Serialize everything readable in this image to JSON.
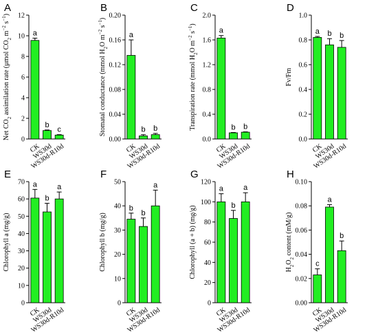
{
  "colors": {
    "bar": "#22ee22",
    "bar_stroke": "#000000",
    "axis": "#000000"
  },
  "chart_data": [
    {
      "panel": "A",
      "type": "bar",
      "categories": [
        "CK",
        "WS30d",
        "WS30d-R10d"
      ],
      "values": [
        9.55,
        0.82,
        0.38
      ],
      "errors": [
        0.22,
        0.05,
        0.04
      ],
      "letters": [
        "a",
        "b",
        "c"
      ],
      "ylabel_html": "Net CO<tspan baseline-shift='sub' font-size='7'>2</tspan> assimilation rate (μmol CO<tspan baseline-shift='sub' font-size='7'>2</tspan> m<tspan baseline-shift='super' font-size='7'>−2</tspan> s<tspan baseline-shift='super' font-size='7'>−1</tspan>)",
      "ylim": [
        0,
        12
      ],
      "yticks": [
        "0",
        "2",
        "4",
        "6",
        "8",
        "10",
        "12"
      ],
      "ytickvals": [
        0,
        2,
        4,
        6,
        8,
        10,
        12
      ]
    },
    {
      "panel": "B",
      "type": "bar",
      "categories": [
        "CK",
        "WS30d",
        "WS30d-R10d"
      ],
      "values": [
        0.135,
        0.005,
        0.007
      ],
      "errors": [
        0.025,
        0.002,
        0.002
      ],
      "letters": [
        "a",
        "b",
        "b"
      ],
      "ylabel_html": "Stomatal conductance (mmol H<tspan baseline-shift='sub' font-size='7'>2</tspan>O m<tspan baseline-shift='super' font-size='7'>−2</tspan> s<tspan baseline-shift='super' font-size='7'>−1</tspan>)",
      "ylim": [
        0,
        0.2
      ],
      "yticks": [
        "0.00",
        "0.04",
        "0.08",
        "0.12",
        "0.16",
        "0.20"
      ],
      "ytickvals": [
        0,
        0.04,
        0.08,
        0.12,
        0.16,
        0.2
      ]
    },
    {
      "panel": "C",
      "type": "bar",
      "categories": [
        "CK",
        "WS30d",
        "WS30d-R10d"
      ],
      "values": [
        1.63,
        0.1,
        0.11
      ],
      "errors": [
        0.04,
        0.005,
        0.005
      ],
      "letters": [
        "a",
        "b",
        "b"
      ],
      "ylabel_html": "Transpiration rate (mmol H<tspan baseline-shift='sub' font-size='7'>2</tspan>O m<tspan baseline-shift='super' font-size='7'>−2</tspan> s<tspan baseline-shift='super' font-size='7'>−1</tspan>)",
      "ylim": [
        0,
        2.0
      ],
      "yticks": [
        "0.0",
        "0.4",
        "0.8",
        "1.2",
        "1.6",
        "2.0"
      ],
      "ytickvals": [
        0,
        0.4,
        0.8,
        1.2,
        1.6,
        2.0
      ]
    },
    {
      "panel": "D",
      "type": "bar",
      "categories": [
        "CK",
        "WS30d",
        "WS30d-R10d"
      ],
      "values": [
        0.82,
        0.76,
        0.74
      ],
      "errors": [
        0.008,
        0.05,
        0.055
      ],
      "letters": [
        "a",
        "b",
        "b"
      ],
      "ylabel_html": "Fv/Fm",
      "ylim": [
        0,
        1.0
      ],
      "yticks": [
        "0.0",
        "0.2",
        "0.4",
        "0.6",
        "0.8",
        "1.0"
      ],
      "ytickvals": [
        0,
        0.2,
        0.4,
        0.6,
        0.8,
        1.0
      ]
    },
    {
      "panel": "E",
      "type": "bar",
      "categories": [
        "CK",
        "WS30d",
        "WS30d-R10d"
      ],
      "values": [
        60.5,
        52.5,
        60
      ],
      "errors": [
        5,
        5,
        4
      ],
      "letters": [
        "a",
        "b",
        "a"
      ],
      "ylabel_html": "Chlorophyll a (mg/g)",
      "ylim": [
        0,
        70
      ],
      "yticks": [
        "0",
        "10",
        "20",
        "30",
        "40",
        "50",
        "60",
        "70"
      ],
      "ytickvals": [
        0,
        10,
        20,
        30,
        40,
        50,
        60,
        70
      ]
    },
    {
      "panel": "F",
      "type": "bar",
      "categories": [
        "CK",
        "WS30d",
        "WS30d-R10d"
      ],
      "values": [
        34.5,
        31.5,
        40
      ],
      "errors": [
        2.5,
        3.5,
        6.5
      ],
      "letters": [
        "b",
        "b",
        "a"
      ],
      "ylabel_html": "Chlorophyll b (mg/g)",
      "ylim": [
        0,
        50
      ],
      "yticks": [
        "0",
        "10",
        "20",
        "30",
        "40",
        "50"
      ],
      "ytickvals": [
        0,
        10,
        20,
        30,
        40,
        50
      ]
    },
    {
      "panel": "G",
      "type": "bar",
      "categories": [
        "CK",
        "WS30d",
        "WS30d-R10d"
      ],
      "values": [
        100,
        83.5,
        100
      ],
      "errors": [
        8,
        8,
        9
      ],
      "letters": [
        "a",
        "b",
        "a"
      ],
      "ylabel_html": "Chlorophyll (a + b) (mg/g)",
      "ylim": [
        0,
        120
      ],
      "yticks": [
        "0",
        "20",
        "40",
        "60",
        "80",
        "100",
        "120"
      ],
      "ytickvals": [
        0,
        20,
        40,
        60,
        80,
        100,
        120
      ]
    },
    {
      "panel": "H",
      "type": "bar",
      "categories": [
        "CK",
        "WS30d",
        "WS30d-R10d"
      ],
      "values": [
        0.023,
        0.079,
        0.043
      ],
      "errors": [
        0.005,
        0.002,
        0.008
      ],
      "letters": [
        "c",
        "a",
        "b"
      ],
      "ylabel_html": "H<tspan baseline-shift='sub' font-size='7'>2</tspan>O<tspan baseline-shift='sub' font-size='7'>2</tspan> content (mM/g)",
      "ylim": [
        0,
        0.1
      ],
      "yticks": [
        "0.00",
        "0.02",
        "0.04",
        "0.06",
        "0.08",
        "0.10"
      ],
      "ytickvals": [
        0,
        0.02,
        0.04,
        0.06,
        0.08,
        0.1
      ]
    }
  ]
}
